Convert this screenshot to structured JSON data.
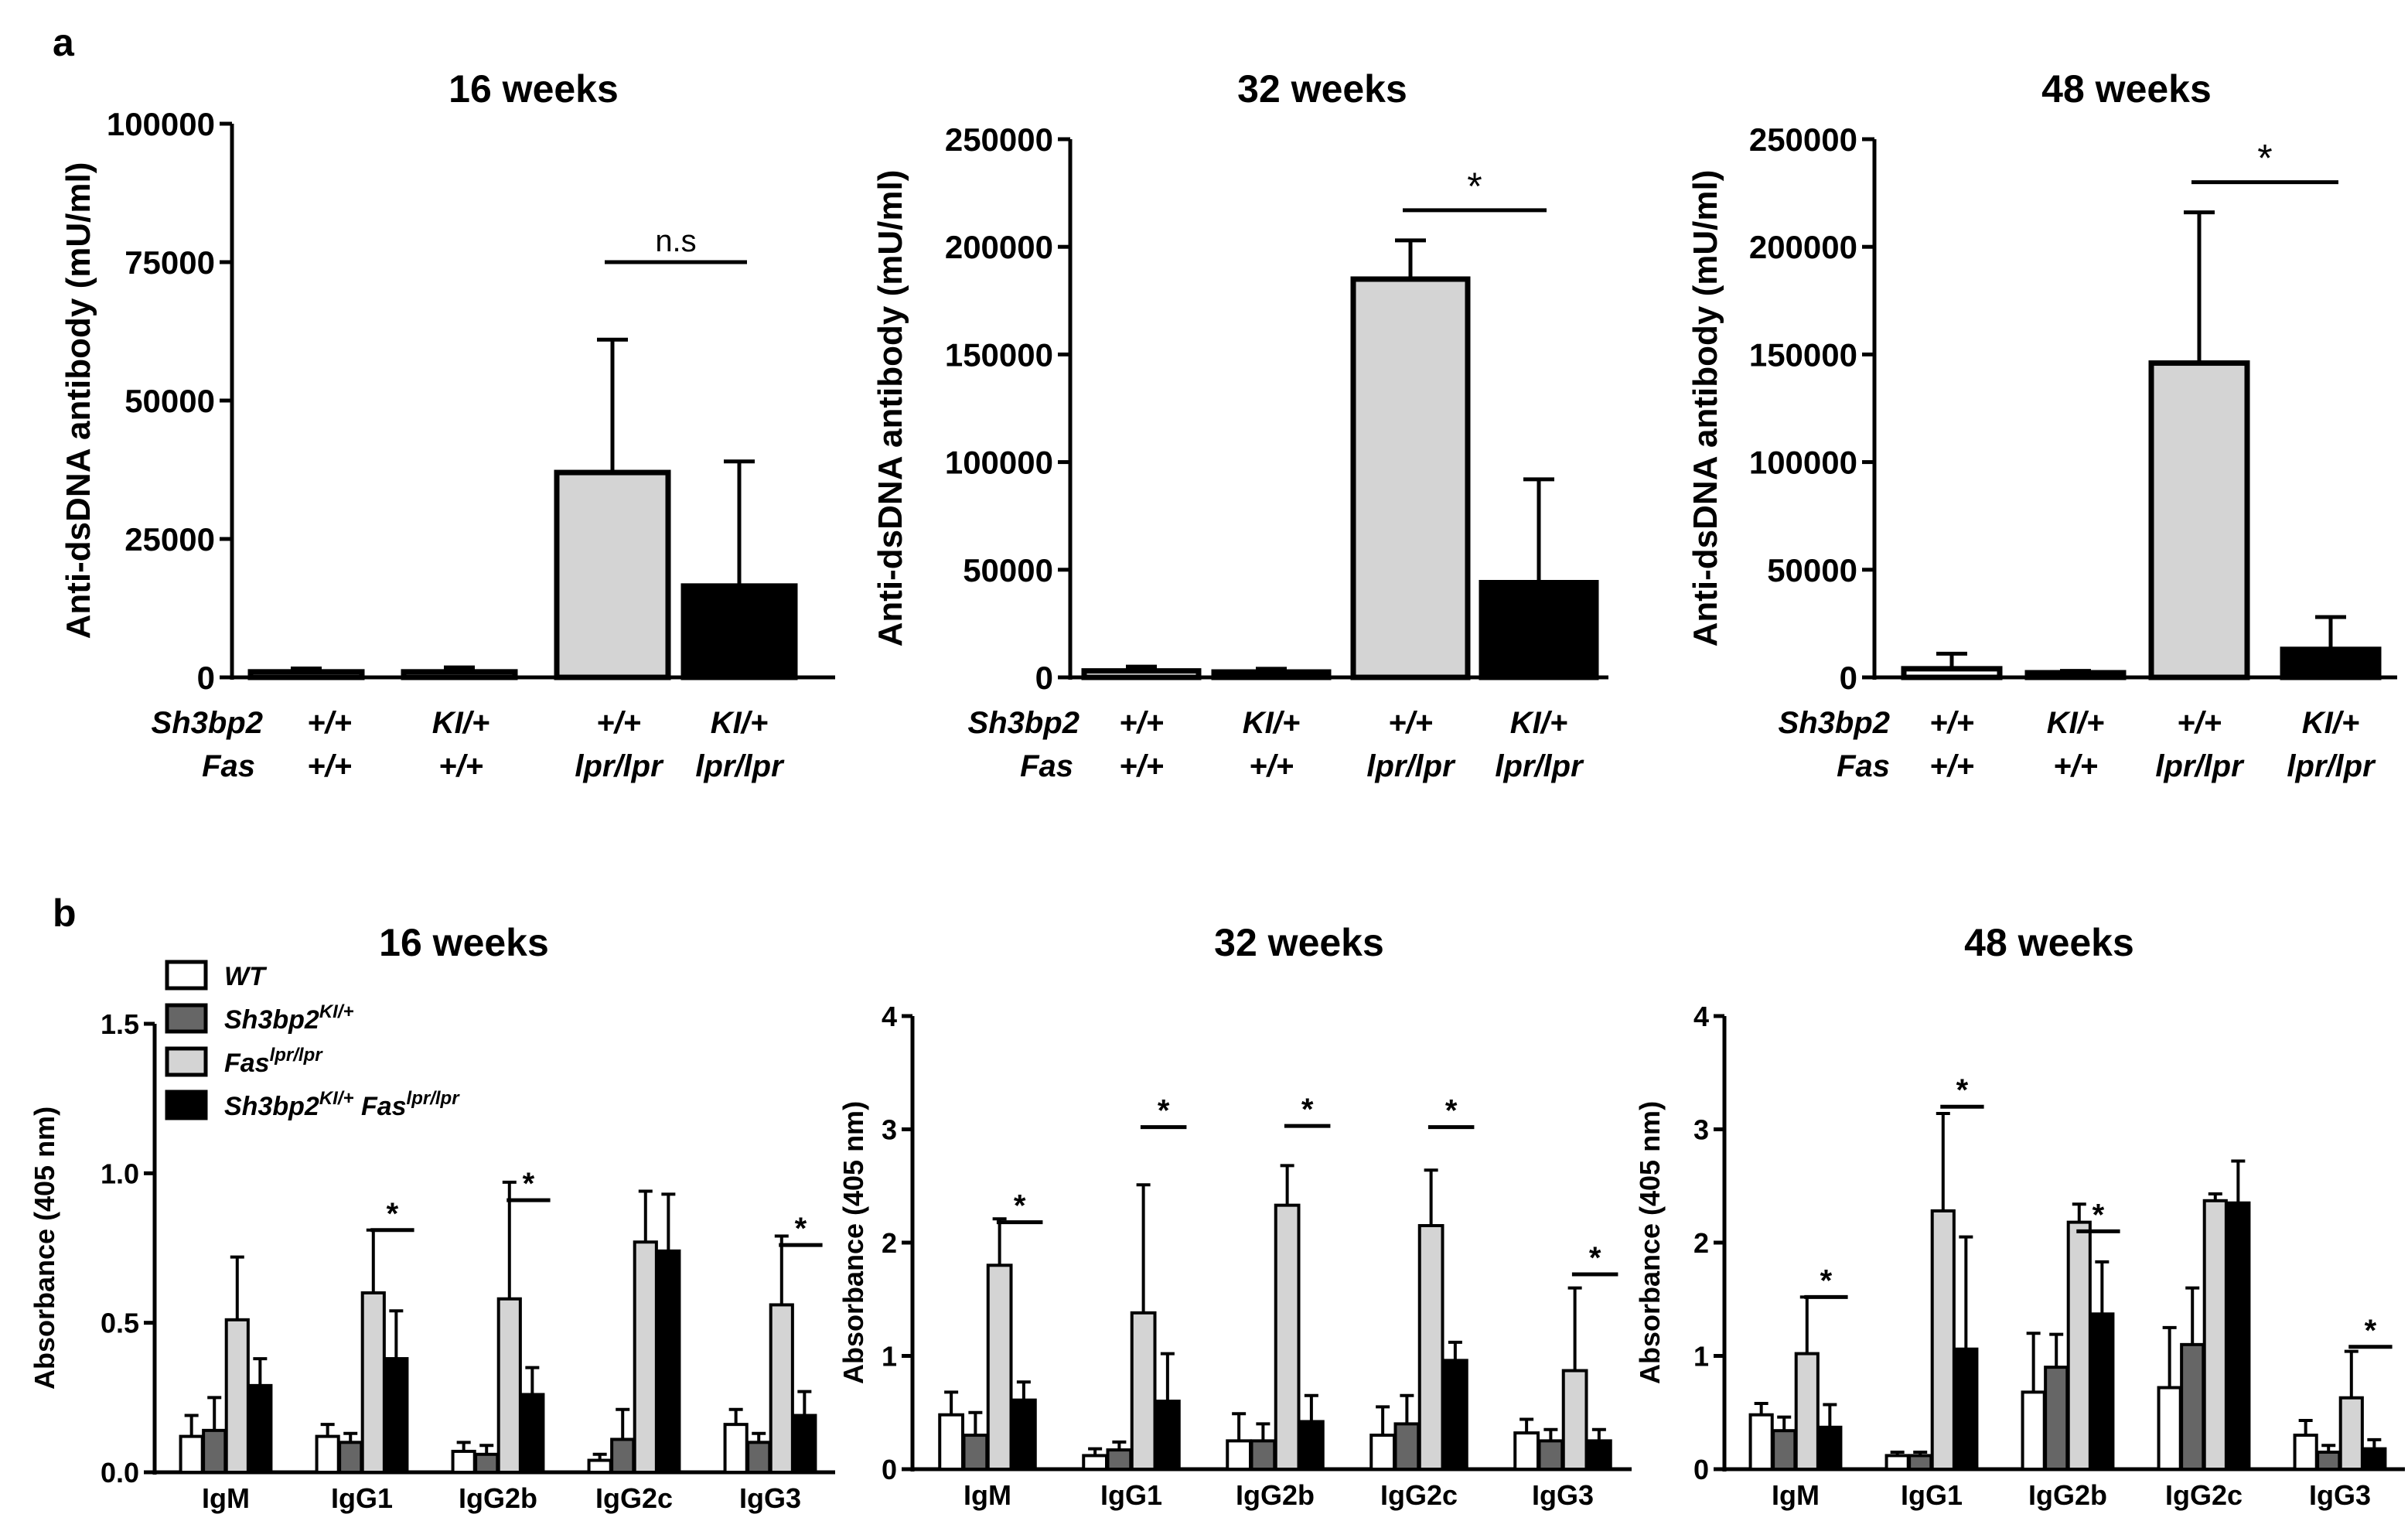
{
  "panel_labels": {
    "a": "a",
    "b": "b"
  },
  "colors": {
    "wt": "#ffffff",
    "ki": "#666666",
    "lpr": "#d4d4d4",
    "ki_lpr": "#000000",
    "stroke": "#000000"
  },
  "chart_data": [
    {
      "id": "a1",
      "type": "bar",
      "title": "16 weeks",
      "ylabel": "Anti-dsDNA antibody (mU/ml)",
      "ylim": [
        0,
        100000
      ],
      "yticks": [
        "0",
        "25000",
        "50000",
        "75000",
        "100000"
      ],
      "row_labels": [
        "Sh3bp2",
        "Fas"
      ],
      "groups": [
        {
          "sh3bp2": "+/+",
          "fas": "+/+",
          "value": 1000,
          "error": 600,
          "color_key": "wt"
        },
        {
          "sh3bp2": "KI/+",
          "fas": "+/+",
          "value": 1000,
          "error": 800,
          "color_key": "wt"
        },
        {
          "sh3bp2": "+/+",
          "fas": "lpr/lpr",
          "value": 37000,
          "error": 24000,
          "color_key": "lpr"
        },
        {
          "sh3bp2": "KI/+",
          "fas": "lpr/lpr",
          "value": 16500,
          "error": 22500,
          "color_key": "ki_lpr"
        }
      ],
      "significance": [
        {
          "from": 2,
          "to": 3,
          "label": "n.s",
          "y": 75000
        }
      ]
    },
    {
      "id": "a2",
      "type": "bar",
      "title": "32 weeks",
      "ylabel": "Anti-dsDNA antibody (mU/ml)",
      "ylim": [
        0,
        250000
      ],
      "yticks": [
        "0",
        "50000",
        "100000",
        "150000",
        "200000",
        "250000"
      ],
      "row_labels": [
        "Sh3bp2",
        "Fas"
      ],
      "groups": [
        {
          "sh3bp2": "+/+",
          "fas": "+/+",
          "value": 3000,
          "error": 2000,
          "color_key": "wt"
        },
        {
          "sh3bp2": "KI/+",
          "fas": "+/+",
          "value": 2500,
          "error": 1500,
          "color_key": "wt"
        },
        {
          "sh3bp2": "+/+",
          "fas": "lpr/lpr",
          "value": 185000,
          "error": 18000,
          "color_key": "lpr"
        },
        {
          "sh3bp2": "KI/+",
          "fas": "lpr/lpr",
          "value": 44000,
          "error": 48000,
          "color_key": "ki_lpr"
        }
      ],
      "significance": [
        {
          "from": 2,
          "to": 3,
          "label": "*",
          "y": 217000
        }
      ]
    },
    {
      "id": "a3",
      "type": "bar",
      "title": "48 weeks",
      "ylabel": "Anti-dsDNA antibody (mU/ml)",
      "ylim": [
        0,
        250000
      ],
      "yticks": [
        "0",
        "50000",
        "100000",
        "150000",
        "200000",
        "250000"
      ],
      "row_labels": [
        "Sh3bp2",
        "Fas"
      ],
      "groups": [
        {
          "sh3bp2": "+/+",
          "fas": "+/+",
          "value": 4000,
          "error": 7000,
          "color_key": "wt"
        },
        {
          "sh3bp2": "KI/+",
          "fas": "+/+",
          "value": 2000,
          "error": 1000,
          "color_key": "wt"
        },
        {
          "sh3bp2": "+/+",
          "fas": "lpr/lpr",
          "value": 146000,
          "error": 70000,
          "color_key": "lpr"
        },
        {
          "sh3bp2": "KI/+",
          "fas": "lpr/lpr",
          "value": 13000,
          "error": 15000,
          "color_key": "ki_lpr"
        }
      ],
      "significance": [
        {
          "from": 2,
          "to": 3,
          "label": "*",
          "y": 230000
        }
      ]
    },
    {
      "id": "b1",
      "type": "bar",
      "title": "16 weeks",
      "ylabel": "Absorbance (405 nm)",
      "ylim": [
        0,
        1.5
      ],
      "yticks": [
        "0.0",
        "0.5",
        "1.0",
        "1.5"
      ],
      "categories": [
        "IgM",
        "IgG1",
        "IgG2b",
        "IgG2c",
        "IgG3"
      ],
      "series": [
        {
          "key": "wt",
          "values": [
            0.12,
            0.12,
            0.07,
            0.04,
            0.16
          ],
          "errors": [
            0.07,
            0.04,
            0.03,
            0.02,
            0.05
          ]
        },
        {
          "key": "ki",
          "values": [
            0.14,
            0.1,
            0.06,
            0.11,
            0.1
          ],
          "errors": [
            0.11,
            0.03,
            0.03,
            0.1,
            0.03
          ]
        },
        {
          "key": "lpr",
          "values": [
            0.51,
            0.6,
            0.58,
            0.77,
            0.56
          ],
          "errors": [
            0.21,
            0.21,
            0.39,
            0.17,
            0.23
          ]
        },
        {
          "key": "ki_lpr",
          "values": [
            0.29,
            0.38,
            0.26,
            0.74,
            0.19
          ],
          "errors": [
            0.09,
            0.16,
            0.09,
            0.19,
            0.08
          ]
        }
      ],
      "significance": [
        {
          "cat": 1,
          "label": "*",
          "y": 0.81
        },
        {
          "cat": 2,
          "label": "*",
          "y": 0.91
        },
        {
          "cat": 4,
          "label": "*",
          "y": 0.76
        }
      ]
    },
    {
      "id": "b2",
      "type": "bar",
      "title": "32 weeks",
      "ylabel": "Absorbance (405 nm)",
      "ylim": [
        0,
        4
      ],
      "yticks": [
        "0",
        "1",
        "2",
        "3",
        "4"
      ],
      "categories": [
        "IgM",
        "IgG1",
        "IgG2b",
        "IgG2c",
        "IgG3"
      ],
      "series": [
        {
          "key": "wt",
          "values": [
            0.48,
            0.12,
            0.25,
            0.3,
            0.32
          ],
          "errors": [
            0.2,
            0.06,
            0.24,
            0.25,
            0.12
          ]
        },
        {
          "key": "ki",
          "values": [
            0.3,
            0.17,
            0.25,
            0.4,
            0.25
          ],
          "errors": [
            0.2,
            0.07,
            0.15,
            0.25,
            0.1
          ]
        },
        {
          "key": "lpr",
          "values": [
            1.8,
            1.38,
            2.33,
            2.15,
            0.87
          ],
          "errors": [
            0.41,
            1.13,
            0.35,
            0.49,
            0.73
          ]
        },
        {
          "key": "ki_lpr",
          "values": [
            0.61,
            0.6,
            0.42,
            0.96,
            0.25
          ],
          "errors": [
            0.16,
            0.42,
            0.23,
            0.16,
            0.1
          ]
        }
      ],
      "significance": [
        {
          "cat": 0,
          "label": "*",
          "y": 2.18
        },
        {
          "cat": 1,
          "label": "*",
          "y": 3.02
        },
        {
          "cat": 2,
          "label": "*",
          "y": 3.03
        },
        {
          "cat": 3,
          "label": "*",
          "y": 3.02
        },
        {
          "cat": 4,
          "label": "*",
          "y": 1.72
        }
      ]
    },
    {
      "id": "b3",
      "type": "bar",
      "title": "48 weeks",
      "ylabel": "Absorbance (405 nm)",
      "ylim": [
        0,
        4
      ],
      "yticks": [
        "0",
        "1",
        "2",
        "3",
        "4"
      ],
      "categories": [
        "IgM",
        "IgG1",
        "IgG2b",
        "IgG2c",
        "IgG3"
      ],
      "series": [
        {
          "key": "wt",
          "values": [
            0.48,
            0.12,
            0.68,
            0.72,
            0.3
          ],
          "errors": [
            0.1,
            0.03,
            0.52,
            0.53,
            0.13
          ]
        },
        {
          "key": "ki",
          "values": [
            0.34,
            0.12,
            0.9,
            1.1,
            0.15
          ],
          "errors": [
            0.12,
            0.03,
            0.29,
            0.5,
            0.06
          ]
        },
        {
          "key": "lpr",
          "values": [
            1.02,
            2.28,
            2.18,
            2.37,
            0.63
          ],
          "errors": [
            0.5,
            0.86,
            0.16,
            0.06,
            0.41
          ]
        },
        {
          "key": "ki_lpr",
          "values": [
            0.37,
            1.06,
            1.37,
            2.35,
            0.18
          ],
          "errors": [
            0.2,
            0.99,
            0.46,
            0.37,
            0.08
          ]
        }
      ],
      "significance": [
        {
          "cat": 0,
          "label": "*",
          "y": 1.52
        },
        {
          "cat": 1,
          "label": "*",
          "y": 3.2
        },
        {
          "cat": 2,
          "label": "*",
          "y": 2.1
        },
        {
          "cat": 4,
          "label": "*",
          "y": 1.08
        }
      ]
    }
  ],
  "legend": [
    {
      "key": "wt",
      "base": "WT",
      "sup": ""
    },
    {
      "key": "ki",
      "base": "Sh3bp2",
      "sup": "KI/+"
    },
    {
      "key": "lpr",
      "base": "Fas",
      "sup": "lpr/lpr"
    },
    {
      "key": "ki_lpr",
      "base": "Sh3bp2",
      "sup": "KI/+",
      "base2": " Fas",
      "sup2": "lpr/lpr"
    }
  ]
}
